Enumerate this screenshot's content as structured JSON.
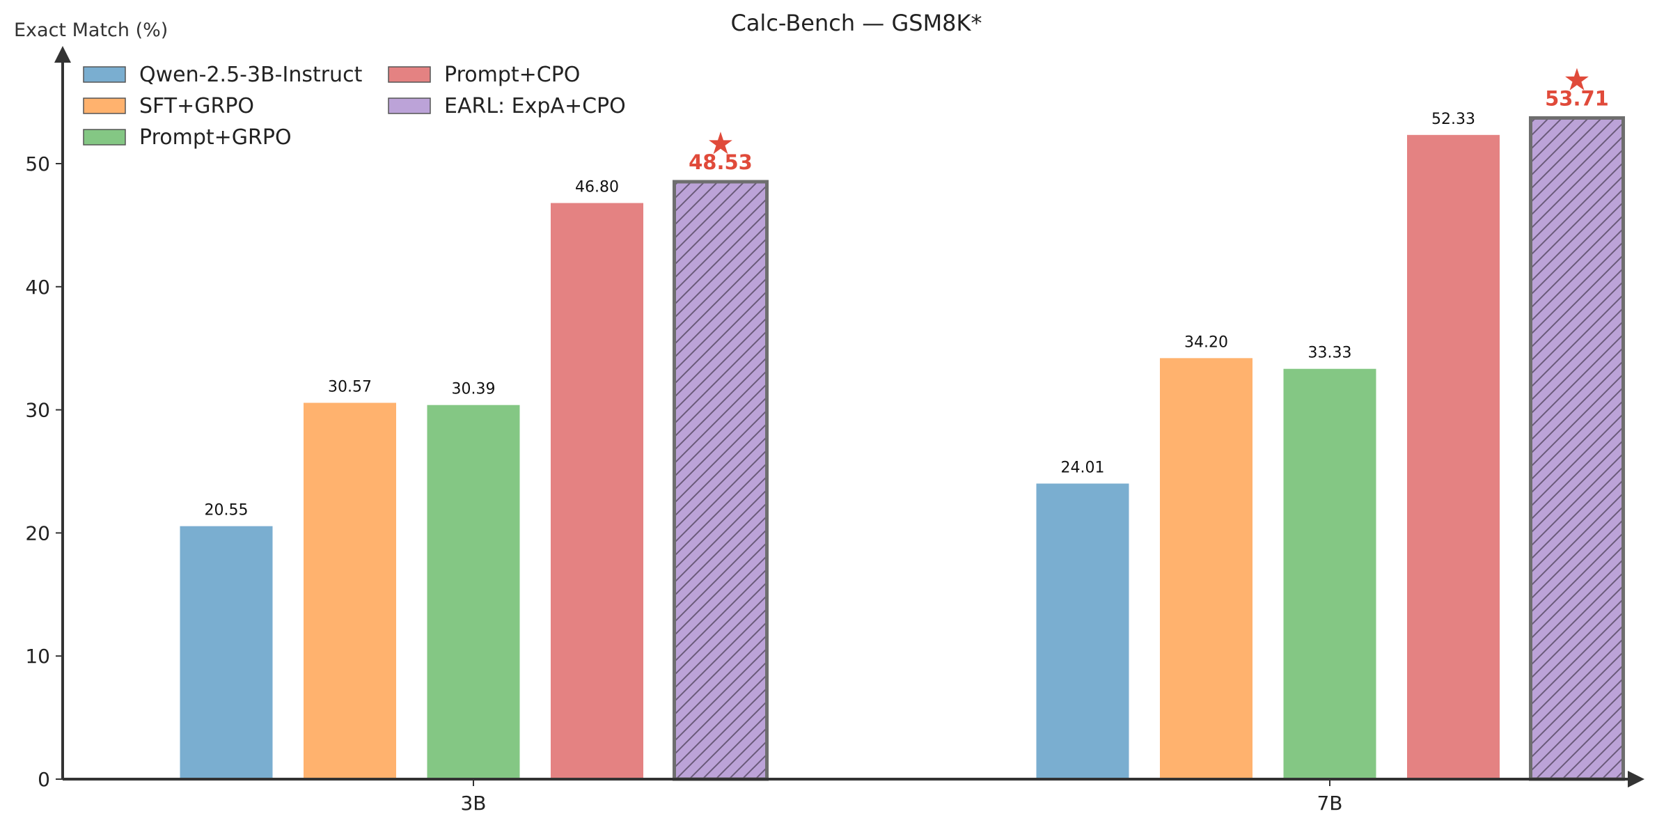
{
  "chart_data": {
    "type": "bar",
    "title": "Calc-Bench — GSM8K*",
    "xlabel": "",
    "ylabel": "Exact Match (%)",
    "ylim": [
      0,
      58
    ],
    "yticks": [
      0,
      10,
      20,
      30,
      40,
      50
    ],
    "categories": [
      "3B",
      "7B"
    ],
    "legend_position": "top-left",
    "grid": false,
    "series": [
      {
        "name": "Qwen-2.5-3B-Instruct",
        "values": [
          20.55,
          24.01
        ],
        "labels": [
          "20.55",
          "24.01"
        ],
        "color": "#7aaed0",
        "hatch": false,
        "highlight": false
      },
      {
        "name": "SFT+GRPO",
        "values": [
          30.57,
          34.2
        ],
        "labels": [
          "30.57",
          "34.20"
        ],
        "color": "#ffb26e",
        "hatch": false,
        "highlight": false
      },
      {
        "name": "Prompt+GRPO",
        "values": [
          30.39,
          33.33
        ],
        "labels": [
          "30.39",
          "33.33"
        ],
        "color": "#84c784",
        "hatch": false,
        "highlight": false
      },
      {
        "name": "Prompt+CPO",
        "values": [
          46.8,
          52.33
        ],
        "labels": [
          "46.80",
          "52.33"
        ],
        "color": "#e48282",
        "hatch": false,
        "highlight": false
      },
      {
        "name": "EARL: ExpA+CPO",
        "values": [
          48.53,
          53.71
        ],
        "labels": [
          "48.53",
          "53.71"
        ],
        "color": "#bca3d8",
        "hatch": true,
        "highlight": true
      }
    ],
    "highlight_color": "#e04a3a",
    "highlight_marker": "★"
  }
}
